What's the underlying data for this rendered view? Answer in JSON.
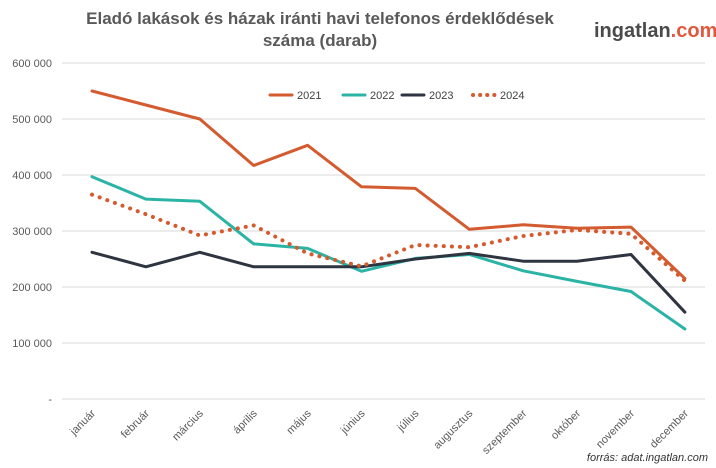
{
  "header": {
    "title_line1": "Eladó lakások és házak iránti havi telefonos érdeklődések",
    "title_line2": "száma (darab)",
    "brand_name": "ingatlan",
    "brand_domain": ".com"
  },
  "footer": {
    "source": "forrás: adat.ingatlan.com"
  },
  "colors": {
    "2021": "#d35b2f",
    "2022": "#2bb3a6",
    "2023": "#2e3440",
    "2024": "#d35b2f",
    "grid": "#d9d9d9",
    "brand_accent": "#e2583e"
  },
  "chart_data": {
    "type": "line",
    "title": "Eladó lakások és házak iránti havi telefonos érdeklődések száma (darab)",
    "categories": [
      "január",
      "február",
      "március",
      "április",
      "május",
      "június",
      "július",
      "augusztus",
      "szeptember",
      "október",
      "november",
      "december"
    ],
    "ylim": [
      0,
      600000
    ],
    "yticks": [
      0,
      100000,
      200000,
      300000,
      400000,
      500000,
      600000
    ],
    "ytick_labels": [
      "-",
      "100 000",
      "200 000",
      "300 000",
      "400 000",
      "500 000",
      "600 000"
    ],
    "grid": true,
    "legend_position": "top",
    "series": [
      {
        "name": "2021",
        "style": "solid",
        "values": [
          550000,
          525000,
          500000,
          417000,
          453000,
          379000,
          376000,
          303000,
          311000,
          305000,
          307000,
          215000
        ]
      },
      {
        "name": "2022",
        "style": "solid",
        "values": [
          397000,
          357000,
          353000,
          277000,
          269000,
          228000,
          251000,
          258000,
          229000,
          210000,
          192000,
          125000
        ]
      },
      {
        "name": "2023",
        "style": "solid",
        "values": [
          262000,
          236000,
          262000,
          236000,
          236000,
          236000,
          250000,
          260000,
          246000,
          246000,
          258000,
          155000
        ]
      },
      {
        "name": "2024",
        "style": "dotted",
        "values": [
          365000,
          330000,
          292000,
          310000,
          260000,
          237000,
          275000,
          271000,
          291000,
          302000,
          295000,
          211000
        ]
      }
    ]
  }
}
